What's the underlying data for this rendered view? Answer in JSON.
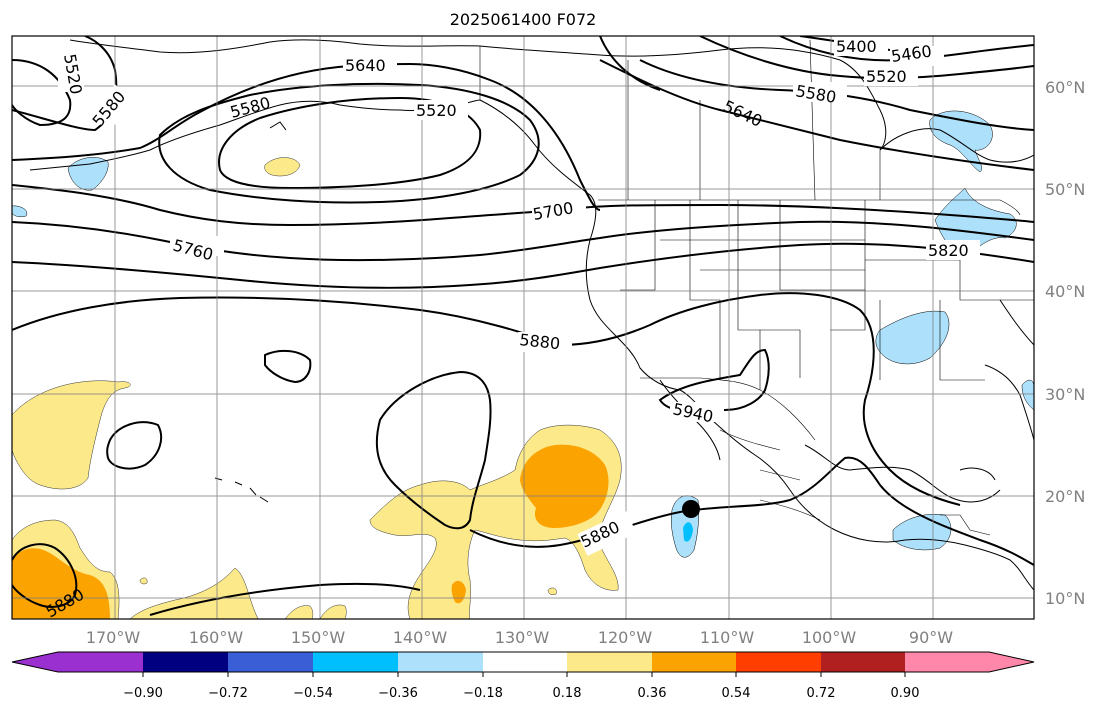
{
  "title": "2025061400 F072",
  "map": {
    "lat_labels": [
      "60°N",
      "50°N",
      "40°N",
      "30°N",
      "20°N",
      "10°N"
    ],
    "lon_labels": [
      "170°W",
      "160°W",
      "150°W",
      "140°W",
      "130°W",
      "120°W",
      "110°W",
      "100°W",
      "90°W"
    ],
    "contour_labels": [
      "5520",
      "5580",
      "5640",
      "5520",
      "5580",
      "5400",
      "5460",
      "5520",
      "5580",
      "5640",
      "5700",
      "5760",
      "5820",
      "5880",
      "5940",
      "5880",
      "5880"
    ],
    "colors": {
      "grid": "#808080",
      "contour": "#000000",
      "coast": "#000000",
      "lightblue": "#ade0fa",
      "yellow": "#fce98a",
      "orange": "#fba300",
      "dot": "#000000"
    }
  },
  "colorbar": {
    "tick_labels": [
      "−0.90",
      "−0.72",
      "−0.54",
      "−0.36",
      "−0.18",
      "0.18",
      "0.36",
      "0.54",
      "0.72",
      "0.90"
    ],
    "colors": [
      "#9b30d0",
      "#000080",
      "#3a5ed6",
      "#00bfff",
      "#ade0fa",
      "#ffffff",
      "#fce98a",
      "#fba300",
      "#ff3e00",
      "#b02020",
      "#ff88aa"
    ]
  }
}
